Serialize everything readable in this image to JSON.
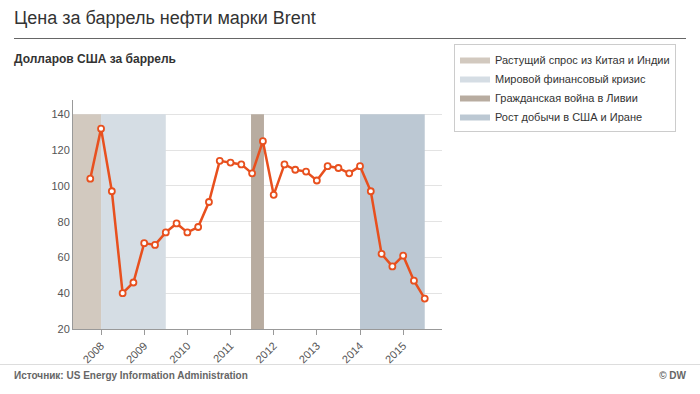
{
  "chart_data": {
    "type": "line",
    "title": "Цена за баррель нефти марки Brent",
    "subtitle": "Долларов США за баррель",
    "source": "Источник: US Energy Information Administration",
    "credit": "© DW",
    "categories": [
      null,
      "2008",
      null,
      null,
      null,
      "2009",
      null,
      null,
      null,
      "2010",
      null,
      null,
      null,
      "2011",
      null,
      null,
      null,
      "2012",
      null,
      null,
      null,
      "2013",
      null,
      null,
      null,
      "2014",
      null,
      null,
      null,
      "2015",
      null,
      null
    ],
    "values": [
      104,
      132,
      97,
      40,
      46,
      68,
      67,
      74,
      79,
      74,
      77,
      91,
      114,
      113,
      112,
      107,
      125,
      95,
      112,
      109,
      108,
      103,
      111,
      110,
      107,
      111,
      97,
      62,
      55,
      61,
      47,
      37
    ],
    "color": "#e8501e",
    "marker": "circle",
    "xlim": [
      -1.6,
      32.6
    ],
    "ylim": [
      20,
      148
    ],
    "yticks": [
      20,
      40,
      60,
      80,
      100,
      120,
      140
    ],
    "grid": true,
    "legend": "upper right",
    "bands": [
      {
        "name": "Растущий спрос из Китая и Индии",
        "color": "#d2c9bf",
        "start": -1.6,
        "end": 1,
        "top": 140
      },
      {
        "name": "Мировой финансовый кризис",
        "color": "#d5dde4",
        "start": 1,
        "end": 7,
        "top": 140
      },
      {
        "name": "Гражданская война в Ливии",
        "color": "#b8aca0",
        "start": 14.9,
        "end": 16.1,
        "top": 140
      },
      {
        "name": "Рост добычи в США и Иране",
        "color": "#bcc8d3",
        "start": 25,
        "end": 31,
        "top": 140
      }
    ]
  }
}
